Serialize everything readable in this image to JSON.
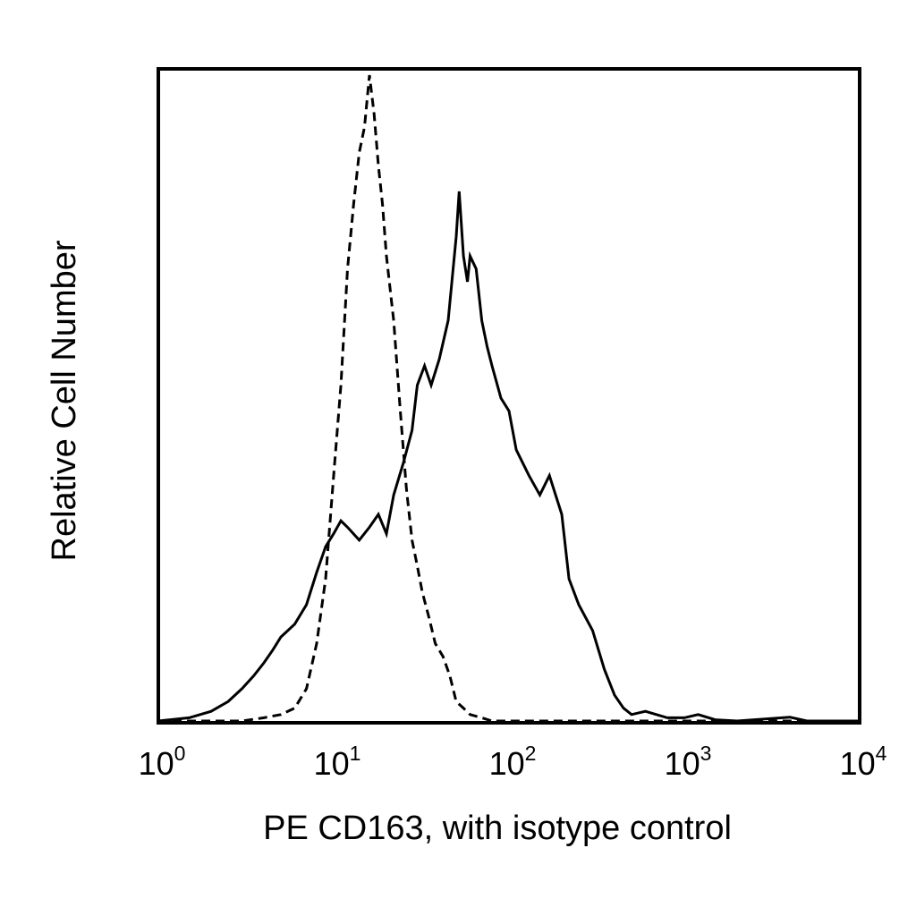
{
  "chart_data": {
    "type": "line",
    "title": "",
    "xlabel": "PE CD163, with isotype control",
    "ylabel": "Relative Cell Number",
    "x_scale": "log10",
    "xlim": [
      1,
      10000
    ],
    "ylim": [
      0,
      100
    ],
    "grid": false,
    "legend": "none",
    "x_ticks": [
      {
        "base": "10",
        "exp": "0",
        "value": 1
      },
      {
        "base": "10",
        "exp": "1",
        "value": 10
      },
      {
        "base": "10",
        "exp": "2",
        "value": 100
      },
      {
        "base": "10",
        "exp": "3",
        "value": 1000
      },
      {
        "base": "10",
        "exp": "4",
        "value": 10000
      }
    ],
    "series": [
      {
        "style": "dashed",
        "color": "#000000",
        "points": [
          [
            1.0,
            0
          ],
          [
            2.0,
            0
          ],
          [
            3.0,
            0
          ],
          [
            4.0,
            0.5
          ],
          [
            5.0,
            1
          ],
          [
            6.0,
            2
          ],
          [
            7.0,
            5
          ],
          [
            8.0,
            12
          ],
          [
            9.0,
            22
          ],
          [
            10.0,
            38
          ],
          [
            11.0,
            52
          ],
          [
            12.0,
            70
          ],
          [
            13.0,
            80
          ],
          [
            14.0,
            88
          ],
          [
            15.0,
            92
          ],
          [
            16.0,
            100
          ],
          [
            17.0,
            94
          ],
          [
            18.0,
            86
          ],
          [
            19.0,
            80
          ],
          [
            20.0,
            72
          ],
          [
            22.0,
            62
          ],
          [
            24.0,
            48
          ],
          [
            26.0,
            36
          ],
          [
            28.0,
            28
          ],
          [
            30.0,
            24
          ],
          [
            32.0,
            20
          ],
          [
            35.0,
            16
          ],
          [
            38.0,
            12
          ],
          [
            42.0,
            10
          ],
          [
            46.0,
            7
          ],
          [
            50.0,
            3
          ],
          [
            55.0,
            2
          ],
          [
            60.0,
            1
          ],
          [
            70.0,
            0.5
          ],
          [
            80.0,
            0
          ],
          [
            100.0,
            0
          ],
          [
            200.0,
            0
          ],
          [
            10000.0,
            0
          ]
        ]
      },
      {
        "style": "solid",
        "color": "#000000",
        "points": [
          [
            1.0,
            0
          ],
          [
            1.5,
            0.5
          ],
          [
            2.0,
            1.5
          ],
          [
            2.5,
            3
          ],
          [
            3.0,
            5
          ],
          [
            3.5,
            7
          ],
          [
            4.0,
            9
          ],
          [
            4.5,
            11
          ],
          [
            5.0,
            13
          ],
          [
            6.0,
            15
          ],
          [
            7.0,
            18
          ],
          [
            8.0,
            23
          ],
          [
            9.0,
            27
          ],
          [
            10.0,
            29
          ],
          [
            11.0,
            31
          ],
          [
            12.0,
            30
          ],
          [
            14.0,
            28
          ],
          [
            16.0,
            30
          ],
          [
            18.0,
            32
          ],
          [
            20.0,
            29
          ],
          [
            22.0,
            35
          ],
          [
            25.0,
            40
          ],
          [
            28.0,
            45
          ],
          [
            30.0,
            52
          ],
          [
            33.0,
            55
          ],
          [
            36.0,
            52
          ],
          [
            40.0,
            56
          ],
          [
            45.0,
            62
          ],
          [
            50.0,
            75
          ],
          [
            52.0,
            82
          ],
          [
            55.0,
            72
          ],
          [
            58.0,
            68
          ],
          [
            60.0,
            72
          ],
          [
            65.0,
            70
          ],
          [
            70.0,
            62
          ],
          [
            75.0,
            58
          ],
          [
            80.0,
            55
          ],
          [
            90.0,
            50
          ],
          [
            100.0,
            48
          ],
          [
            110.0,
            42
          ],
          [
            130.0,
            38
          ],
          [
            150.0,
            35
          ],
          [
            170.0,
            38
          ],
          [
            200.0,
            32
          ],
          [
            220.0,
            22
          ],
          [
            250.0,
            18
          ],
          [
            300.0,
            14
          ],
          [
            350.0,
            8
          ],
          [
            400.0,
            4
          ],
          [
            450.0,
            2
          ],
          [
            500.0,
            1
          ],
          [
            600.0,
            1.5
          ],
          [
            800.0,
            0.5
          ],
          [
            1000.0,
            0.5
          ],
          [
            1200.0,
            1
          ],
          [
            1500.0,
            0.2
          ],
          [
            2000.0,
            0
          ],
          [
            4000.0,
            0.6
          ],
          [
            5000.0,
            0
          ],
          [
            10000.0,
            0
          ]
        ]
      }
    ]
  }
}
